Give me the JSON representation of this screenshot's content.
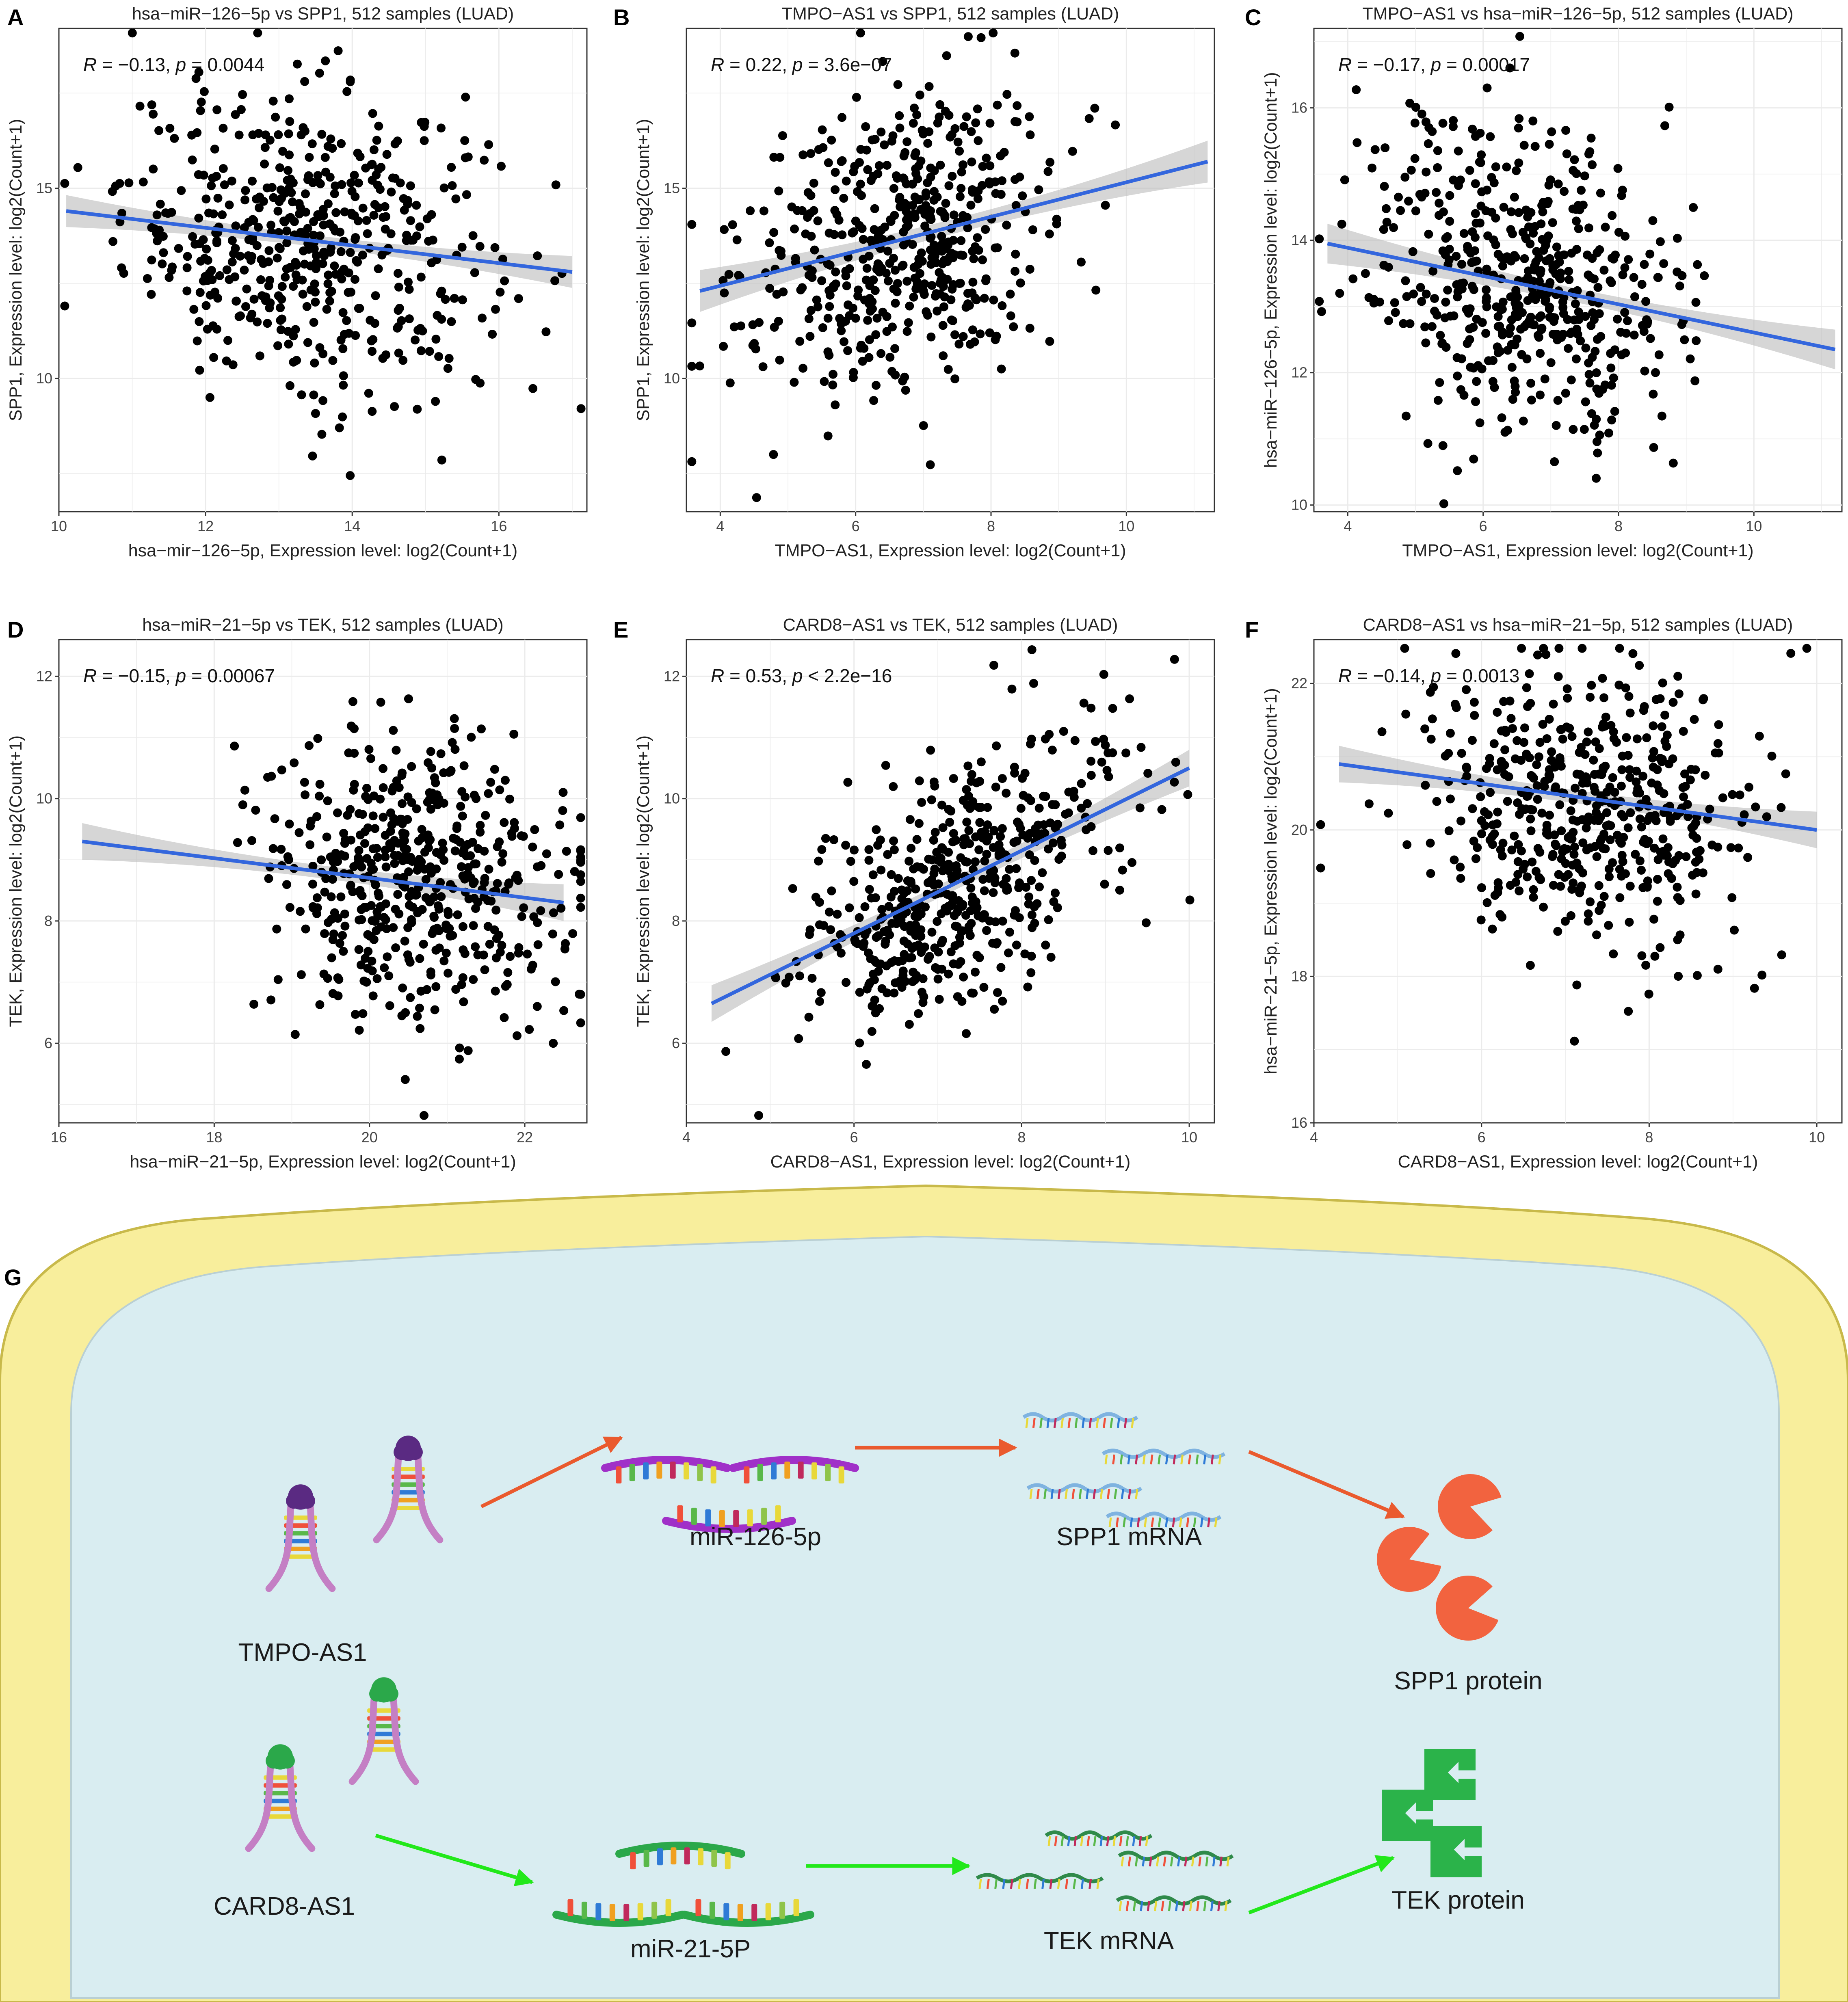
{
  "figure": {
    "panel_g_label": "G",
    "labels": {
      "tmpo": "TMPO-AS1",
      "mir126": "miR-126-5p",
      "spp1_mrna": "SPP1 mRNA",
      "spp1_protein": "SPP1 protein",
      "card8": "CARD8-AS1",
      "mir21": "miR-21-5P",
      "tek_mrna": "TEK mRNA",
      "tek_protein": "TEK protein"
    },
    "colors": {
      "cell_membrane": "#f8ee9c",
      "cytoplasm": "#d9edf1",
      "pathway_top": "#ea5a2e",
      "pathway_bottom": "#22e81a",
      "spp1_protein": "#f2633f",
      "tek_protein": "#2bb34a",
      "regression_line": "#3366dd",
      "confidence_band": "#bbbbbb"
    }
  },
  "chart_data": [
    {
      "id": "A",
      "type": "scatter",
      "title": "hsa−miR−126−5p vs SPP1, 512 samples (LUAD)",
      "xlabel": "hsa−mir−126−5p, Expression level: log2(Count+1)",
      "ylabel": "SPP1, Expression level: log2(Count+1)",
      "xlim": [
        10,
        17.2
      ],
      "ylim": [
        6.5,
        19.2
      ],
      "xticks": [
        10,
        12,
        14,
        16
      ],
      "yticks": [
        10,
        15
      ],
      "stat_r": "−0.13",
      "stat_p": "p = 0.0044",
      "n": 512,
      "x_center": 13.4,
      "x_sd": 1.25,
      "y_center": 13.7,
      "y_sd": 2.0,
      "fit": {
        "x0": 10.1,
        "y0": 14.4,
        "x1": 17.0,
        "y1": 12.8
      },
      "band": 0.42
    },
    {
      "id": "B",
      "type": "scatter",
      "title": "TMPO−AS1 vs SPP1, 512 samples (LUAD)",
      "xlabel": "TMPO−AS1, Expression level: log2(Count+1)",
      "ylabel": "SPP1, Expression level: log2(Count+1)",
      "xlim": [
        3.5,
        11.3
      ],
      "ylim": [
        6.5,
        19.2
      ],
      "xticks": [
        4,
        6,
        8,
        10
      ],
      "yticks": [
        10,
        15
      ],
      "stat_r": "0.22",
      "stat_p": "p = 3.6e−07",
      "n": 512,
      "x_center": 6.6,
      "x_sd": 1.15,
      "y_center": 13.8,
      "y_sd": 2.0,
      "fit": {
        "x0": 3.7,
        "y0": 12.3,
        "x1": 11.2,
        "y1": 15.7
      },
      "band": 0.55
    },
    {
      "id": "C",
      "type": "scatter",
      "title": "TMPO−AS1 vs hsa−miR−126−5p, 512 samples (LUAD)",
      "xlabel": "TMPO−AS1, Expression level: log2(Count+1)",
      "ylabel": "hsa−miR−126−5p, Expression level: log2(Count+1)",
      "xlim": [
        3.5,
        11.3
      ],
      "ylim": [
        9.9,
        17.2
      ],
      "xticks": [
        4,
        6,
        8,
        10
      ],
      "yticks": [
        10,
        12,
        14,
        16
      ],
      "stat_r": "−0.17",
      "stat_p": "p = 0.00017",
      "n": 512,
      "x_center": 6.6,
      "x_sd": 1.15,
      "y_center": 13.2,
      "y_sd": 1.25,
      "fit": {
        "x0": 3.7,
        "y0": 13.95,
        "x1": 11.2,
        "y1": 12.35
      },
      "band": 0.3
    },
    {
      "id": "D",
      "type": "scatter",
      "title": "hsa−miR−21−5p vs TEK, 512 samples (LUAD)",
      "xlabel": "hsa−miR−21−5p, Expression level: log2(Count+1)",
      "ylabel": "TEK, Expression level: log2(Count+1)",
      "xlim": [
        16,
        22.8
      ],
      "ylim": [
        4.7,
        12.6
      ],
      "xticks": [
        16,
        18,
        20,
        22
      ],
      "yticks": [
        6,
        8,
        10,
        12
      ],
      "stat_r": "−0.15",
      "stat_p": "p = 0.00067",
      "n": 512,
      "x_center": 20.6,
      "x_sd": 0.95,
      "y_center": 8.5,
      "y_sd": 1.2,
      "fit": {
        "x0": 16.3,
        "y0": 9.3,
        "x1": 22.5,
        "y1": 8.3
      },
      "band": 0.3
    },
    {
      "id": "E",
      "type": "scatter",
      "title": "CARD8−AS1 vs TEK, 512 samples (LUAD)",
      "xlabel": "CARD8−AS1, Expression level: log2(Count+1)",
      "ylabel": "TEK, Expression level: log2(Count+1)",
      "xlim": [
        4,
        10.3
      ],
      "ylim": [
        4.7,
        12.6
      ],
      "xticks": [
        4,
        6,
        8,
        10
      ],
      "yticks": [
        6,
        8,
        10,
        12
      ],
      "stat_r": "0.53",
      "stat_p": "p < 2.2e−16",
      "n": 512,
      "x_center": 7.2,
      "x_sd": 0.95,
      "y_center": 8.6,
      "y_sd": 1.2,
      "fit": {
        "x0": 4.3,
        "y0": 6.65,
        "x1": 10.0,
        "y1": 10.5
      },
      "band": 0.3
    },
    {
      "id": "F",
      "type": "scatter",
      "title": "CARD8−AS1 vs hsa−miR−21−5p, 512 samples (LUAD)",
      "xlabel": "CARD8−AS1, Expression level: log2(Count+1)",
      "ylabel": "hsa−miR−21−5p, Expression level: log2(Count+1)",
      "xlim": [
        4,
        10.3
      ],
      "ylim": [
        16,
        22.6
      ],
      "xticks": [
        4,
        6,
        8,
        10
      ],
      "yticks": [
        16,
        18,
        20,
        22
      ],
      "stat_r": "−0.14",
      "stat_p": "p = 0.0013",
      "n": 512,
      "x_center": 7.2,
      "x_sd": 0.95,
      "y_center": 20.5,
      "y_sd": 0.95,
      "fit": {
        "x0": 4.3,
        "y0": 20.9,
        "x1": 10.0,
        "y1": 20.0
      },
      "band": 0.25
    }
  ]
}
